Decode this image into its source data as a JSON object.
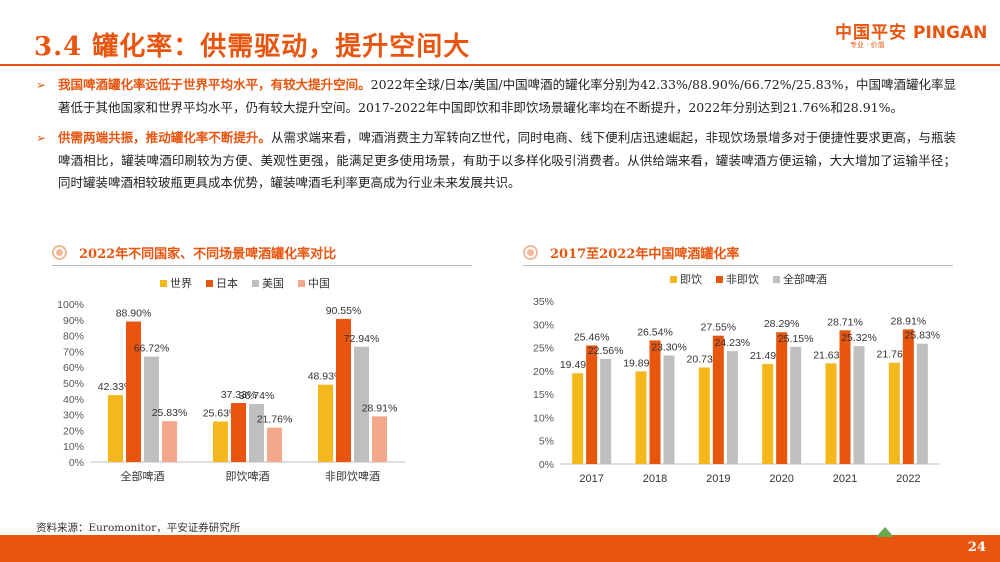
{
  "slide": {
    "title": "3.4 罐化率：供需驱动，提升空间大",
    "page_number": "24",
    "source": "资料来源：Euromonitor，平安证券研究所"
  },
  "logo": {
    "cn": "中国平安",
    "en": "PINGAN",
    "sub": "专业 · 价值"
  },
  "colors": {
    "accent": "#e8550f",
    "world": "#f5b81c",
    "japan": "#e8550f",
    "usa": "#bfbfbf",
    "china": "#f4a88a",
    "on_prem": "#f5b81c",
    "off_prem": "#e8550f",
    "all_beer": "#bfbfbf"
  },
  "bullets": [
    {
      "lead": "我国啤酒罐化率远低于世界平均水平，有较大提升空间。",
      "body": "2022年全球/日本/美国/中国啤酒的罐化率分别为42.33%/88.90%/66.72%/25.83%，中国啤酒罐化率显著低于其他国家和世界平均水平，仍有较大提升空间。2017-2022年中国即饮和非即饮场景罐化率均在不断提升，2022年分别达到21.76%和28.91%。"
    },
    {
      "lead": "供需两端共振，推动罐化率不断提升。",
      "body": "从需求端来看，啤酒消费主力军转向Z世代，同时电商、线下便利店迅速崛起，非现饮场景增多对于便捷性要求更高，与瓶装啤酒相比，罐装啤酒印刷较为方便、美观性更强，能满足更多使用场景，有助于以多样化吸引消费者。从供给端来看，罐装啤酒方便运输，大大增加了运输半径；同时罐装啤酒相较玻瓶更具成本优势，罐装啤酒毛利率更高成为行业未来发展共识。"
    }
  ],
  "chart_titles": {
    "left": "2022年不同国家、不同场景啤酒罐化率对比",
    "right": "2017至2022年中国啤酒罐化率"
  },
  "chart_data": [
    {
      "type": "bar",
      "title": "2022年不同国家、不同场景啤酒罐化率对比",
      "categories": [
        "全部啤酒",
        "即饮啤酒",
        "非即饮啤酒"
      ],
      "series": [
        {
          "name": "世界",
          "values": [
            42.33,
            25.63,
            48.93
          ]
        },
        {
          "name": "日本",
          "values": [
            88.9,
            37.33,
            90.55
          ]
        },
        {
          "name": "美国",
          "values": [
            66.72,
            36.74,
            72.94
          ]
        },
        {
          "name": "中国",
          "values": [
            25.83,
            21.76,
            28.91
          ]
        }
      ],
      "labels": [
        [
          "42.33%",
          "88.90%",
          "66.72%",
          "25.83%"
        ],
        [
          "25.63%",
          "37.33%",
          "36.74%",
          "21.76%"
        ],
        [
          "48.93%",
          "90.55%",
          "72.94%",
          "28.91%"
        ]
      ],
      "yticks": [
        "0%",
        "10%",
        "20%",
        "30%",
        "40%",
        "50%",
        "60%",
        "70%",
        "80%",
        "90%",
        "100%"
      ],
      "ylim": [
        0,
        100
      ],
      "legend": "top"
    },
    {
      "type": "bar",
      "title": "2017至2022年中国啤酒罐化率",
      "categories": [
        "2017",
        "2018",
        "2019",
        "2020",
        "2021",
        "2022"
      ],
      "series": [
        {
          "name": "即饮",
          "values": [
            19.49,
            19.89,
            20.73,
            21.49,
            21.63,
            21.76
          ]
        },
        {
          "name": "非即饮",
          "values": [
            25.46,
            26.54,
            27.55,
            28.29,
            28.71,
            28.91
          ]
        },
        {
          "name": "全部啤酒",
          "values": [
            22.56,
            23.3,
            24.23,
            25.15,
            25.32,
            25.83
          ]
        }
      ],
      "labels": [
        [
          "19.49%",
          "25.46%",
          "22.56%"
        ],
        [
          "19.89%",
          "26.54%",
          "23.30%"
        ],
        [
          "20.73%",
          "27.55%",
          "24.23%"
        ],
        [
          "21.49%",
          "28.29%",
          "25.15%"
        ],
        [
          "21.63%",
          "28.71%",
          "25.32%"
        ],
        [
          "21.76%",
          "28.91%",
          "25.83%"
        ]
      ],
      "yticks": [
        "0%",
        "5%",
        "10%",
        "15%",
        "20%",
        "25%",
        "30%",
        "35%"
      ],
      "ylim": [
        0,
        35
      ],
      "legend": "top"
    }
  ]
}
